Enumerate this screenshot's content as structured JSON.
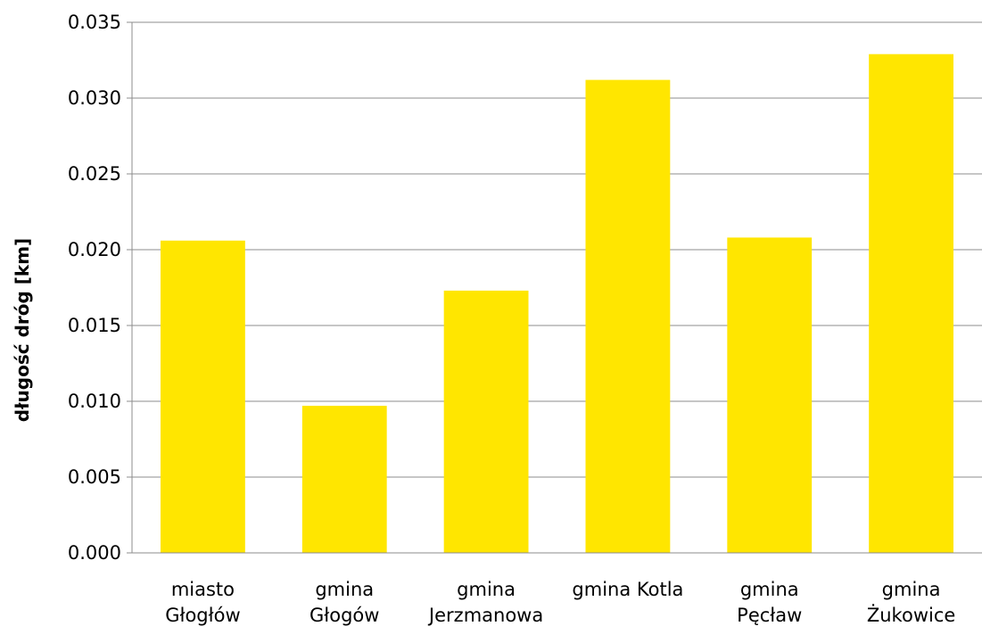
{
  "chart_data": {
    "type": "bar",
    "title": "",
    "xlabel": "",
    "ylabel": "długość dróg [km]",
    "ylim": [
      0,
      0.035
    ],
    "yticks": [
      "0.000",
      "0.005",
      "0.010",
      "0.015",
      "0.020",
      "0.025",
      "0.030",
      "0.035"
    ],
    "grid": true,
    "legend": "none",
    "bar_color": "#FFE600",
    "categories": [
      [
        "miasto",
        "Głogłów"
      ],
      [
        "gmina",
        "Głogów"
      ],
      [
        "gmina",
        "Jerzmanowa"
      ],
      [
        "gmina Kotla"
      ],
      [
        "gmina",
        "Pęcław"
      ],
      [
        "gmina",
        "Żukowice"
      ]
    ],
    "values": [
      0.0206,
      0.0097,
      0.0173,
      0.0312,
      0.0208,
      0.0329
    ]
  }
}
